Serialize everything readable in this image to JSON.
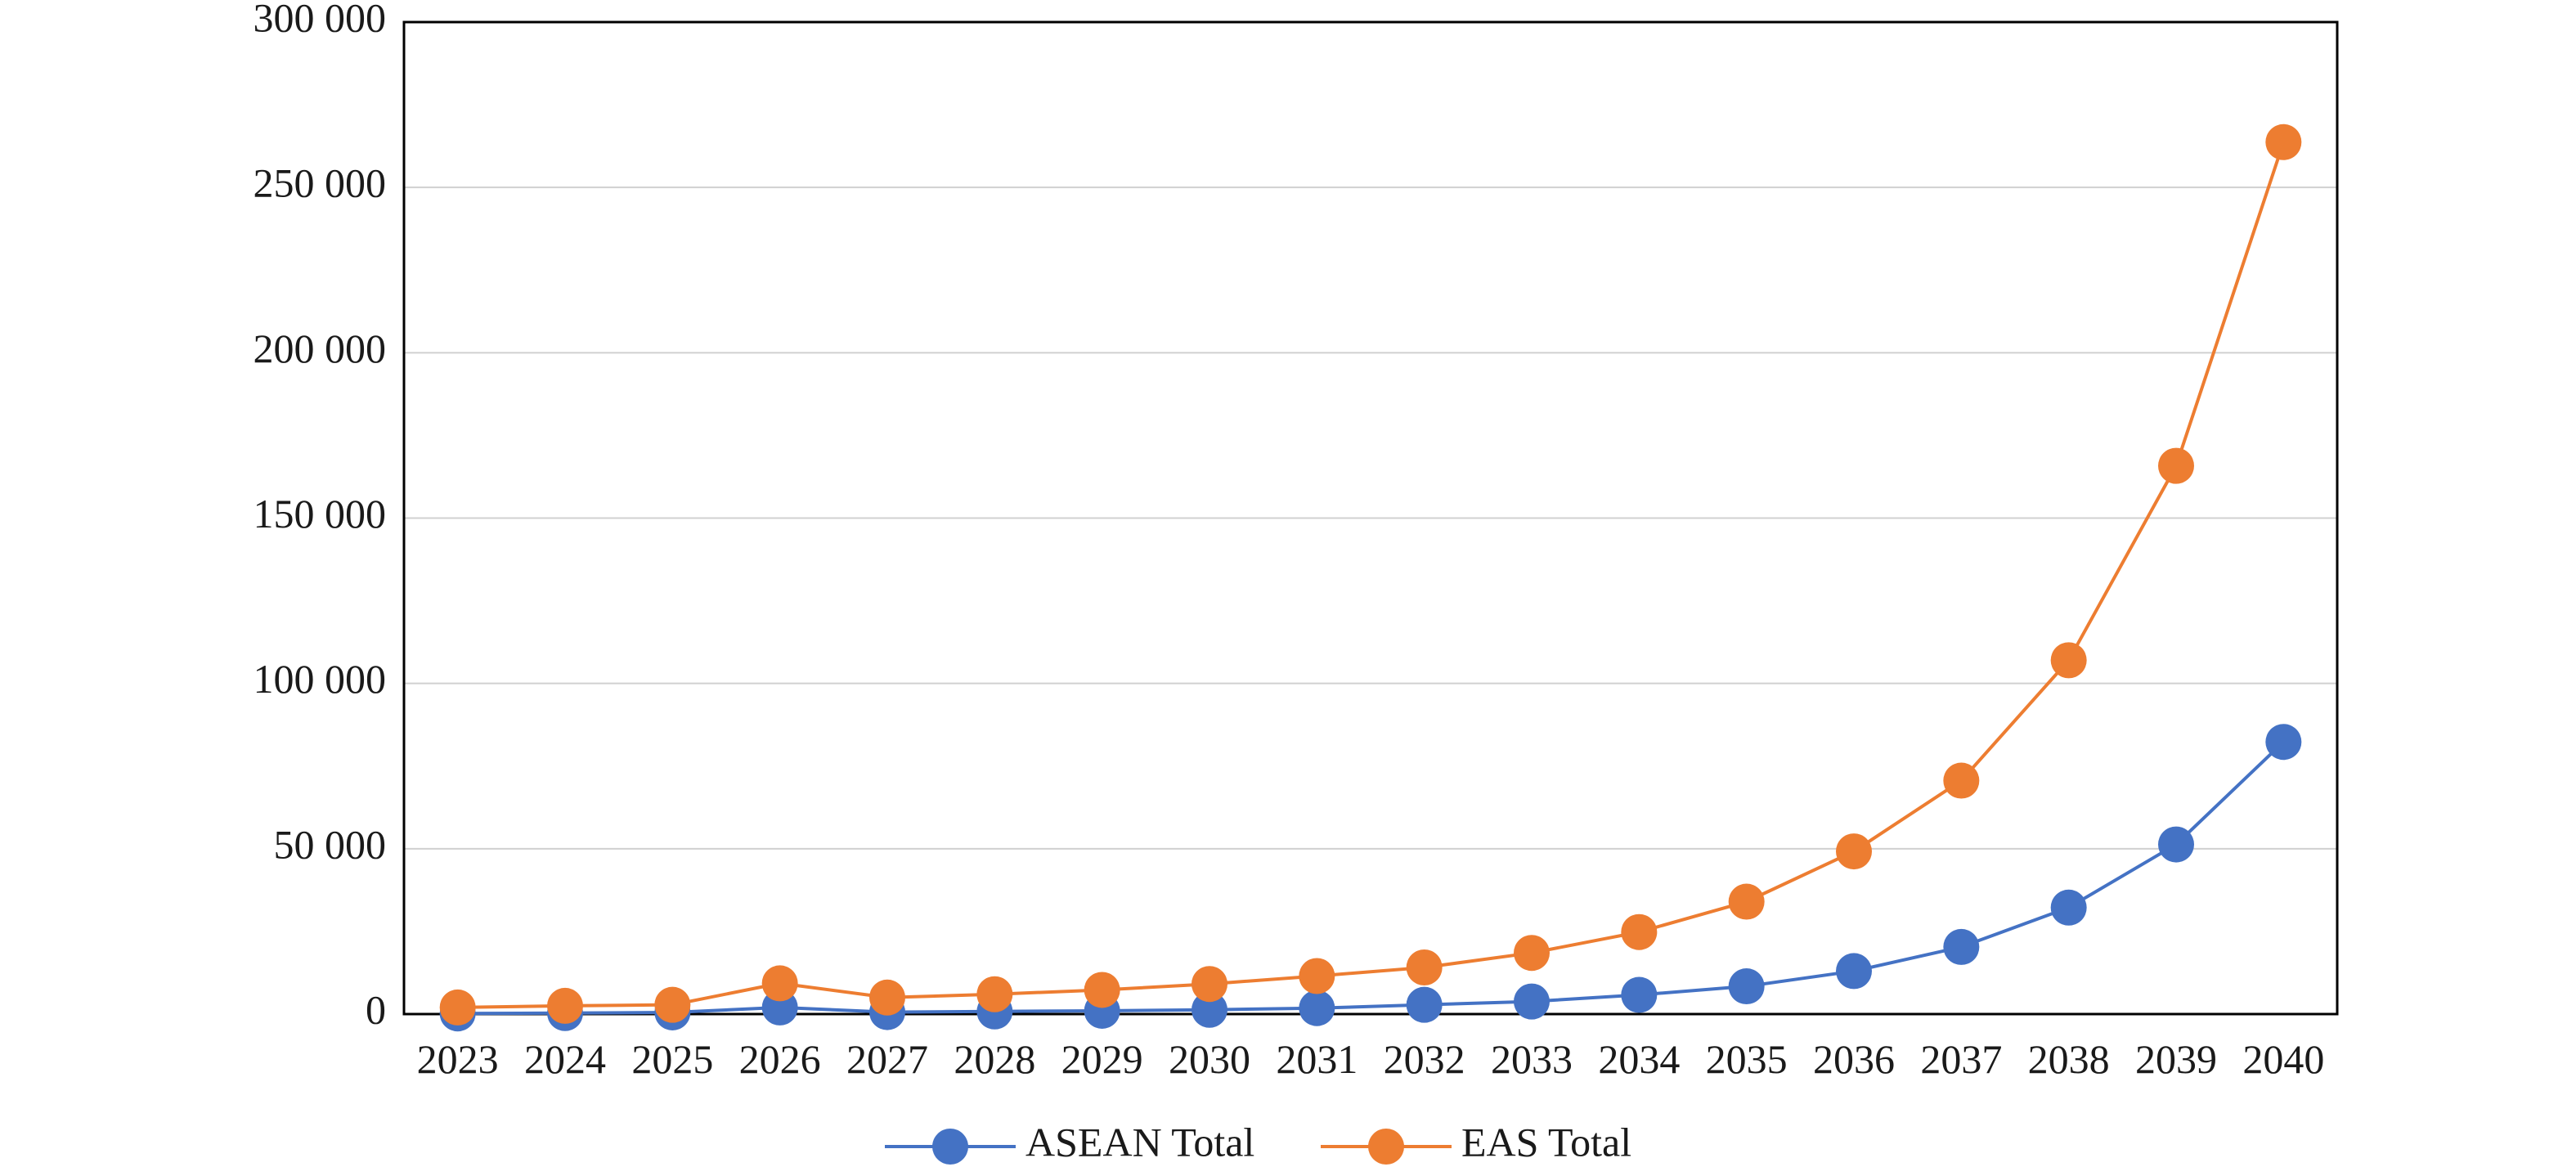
{
  "chart_data": {
    "type": "line",
    "title": "",
    "xlabel": "",
    "ylabel": "",
    "categories": [
      "2023",
      "2024",
      "2025",
      "2026",
      "2027",
      "2028",
      "2029",
      "2030",
      "2031",
      "2032",
      "2033",
      "2034",
      "2035",
      "2036",
      "2037",
      "2038",
      "2039",
      "2040"
    ],
    "y_ticks": [
      0,
      50000,
      100000,
      150000,
      200000,
      250000,
      300000
    ],
    "y_tick_labels": [
      "0",
      "50 000",
      "100 000",
      "150 000",
      "200 000",
      "250 000",
      "300 000"
    ],
    "ylim": [
      0,
      300000
    ],
    "grid": "horizontal",
    "legend_position": "bottom",
    "series": [
      {
        "name": "ASEAN Total",
        "color": "#4472C4",
        "values": [
          200,
          300,
          500,
          2000,
          600,
          800,
          1000,
          1300,
          1800,
          2800,
          3800,
          5800,
          8400,
          13000,
          20300,
          32200,
          51300,
          82300
        ]
      },
      {
        "name": "EAS Total",
        "color": "#ED7D31",
        "values": [
          2000,
          2500,
          2800,
          9300,
          5000,
          6000,
          7300,
          9100,
          11500,
          14100,
          18500,
          24800,
          34000,
          49200,
          70600,
          107000,
          165800,
          263700
        ]
      }
    ]
  }
}
